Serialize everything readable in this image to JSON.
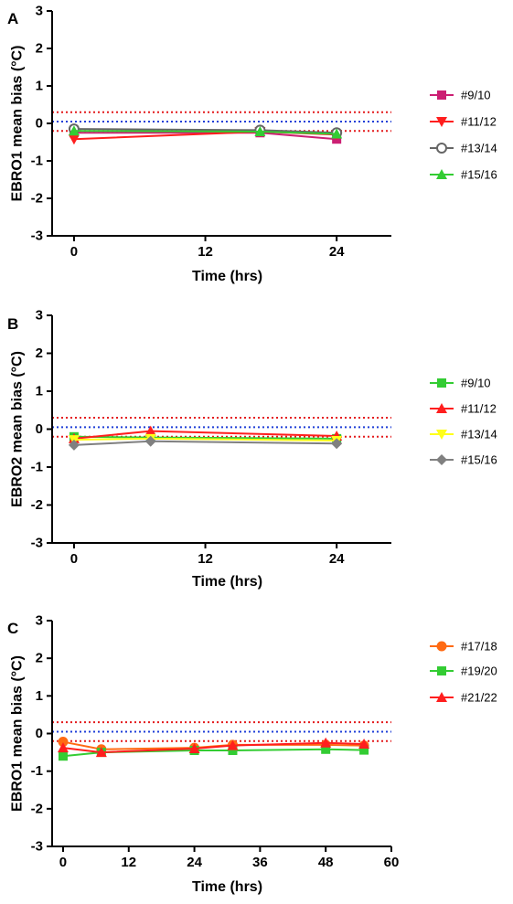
{
  "chart_data": [
    {
      "type": "line",
      "panel": "A",
      "xlabel": "Time (hrs)",
      "ylabel": "EBRO1 mean bias (°C)",
      "xlim": [
        -2,
        29
      ],
      "ylim": [
        -3,
        3
      ],
      "xticks": [
        0,
        12,
        24
      ],
      "yticks": [
        -3,
        -2,
        -1,
        0,
        1,
        2,
        3
      ],
      "reference_lines": [
        {
          "y": 0.3,
          "color": "#e41a1c",
          "style": "dotted"
        },
        {
          "y": 0.05,
          "color": "#1f3fd8",
          "style": "dotted"
        },
        {
          "y": -0.2,
          "color": "#e41a1c",
          "style": "dotted"
        }
      ],
      "legend_position": "right",
      "series": [
        {
          "name": "#9/10",
          "color": "#cc1f73",
          "marker": "square",
          "x": [
            0,
            17,
            24
          ],
          "y": [
            -0.25,
            -0.25,
            -0.42
          ]
        },
        {
          "name": "#11/12",
          "color": "#ff1e1e",
          "marker": "triangle-down",
          "x": [
            0,
            17,
            24
          ],
          "y": [
            -0.42,
            -0.22,
            -0.3
          ]
        },
        {
          "name": "#13/14",
          "color": "#666666",
          "marker": "circle-open",
          "x": [
            0,
            17,
            24
          ],
          "y": [
            -0.15,
            -0.18,
            -0.25
          ]
        },
        {
          "name": "#15/16",
          "color": "#33cc33",
          "marker": "triangle-up",
          "x": [
            0,
            17,
            24
          ],
          "y": [
            -0.2,
            -0.22,
            -0.28
          ]
        }
      ]
    },
    {
      "type": "line",
      "panel": "B",
      "xlabel": "Time (hrs)",
      "ylabel": "EBRO2 mean bias (°C)",
      "xlim": [
        -2,
        29
      ],
      "ylim": [
        -3,
        3
      ],
      "xticks": [
        0,
        12,
        24
      ],
      "yticks": [
        -3,
        -2,
        -1,
        0,
        1,
        2,
        3
      ],
      "reference_lines": [
        {
          "y": 0.3,
          "color": "#e41a1c",
          "style": "dotted"
        },
        {
          "y": 0.05,
          "color": "#1f3fd8",
          "style": "dotted"
        },
        {
          "y": -0.2,
          "color": "#e41a1c",
          "style": "dotted"
        }
      ],
      "legend_position": "right",
      "series": [
        {
          "name": "#9/10",
          "color": "#33cc33",
          "marker": "square",
          "x": [
            0,
            7,
            24
          ],
          "y": [
            -0.2,
            -0.22,
            -0.25
          ]
        },
        {
          "name": "#11/12",
          "color": "#ff1e1e",
          "marker": "triangle-up",
          "x": [
            0,
            7,
            24
          ],
          "y": [
            -0.25,
            -0.05,
            -0.18
          ]
        },
        {
          "name": "#13/14",
          "color": "#ffff1a",
          "marker": "triangle-down",
          "x": [
            0,
            7,
            24
          ],
          "y": [
            -0.28,
            -0.25,
            -0.3
          ]
        },
        {
          "name": "#15/16",
          "color": "#808080",
          "marker": "diamond",
          "x": [
            0,
            7,
            24
          ],
          "y": [
            -0.42,
            -0.32,
            -0.38
          ]
        }
      ]
    },
    {
      "type": "line",
      "panel": "C",
      "xlabel": "Time (hrs)",
      "ylabel": "EBRO1 mean bias (°C)",
      "xlim": [
        -2,
        60
      ],
      "ylim": [
        -3,
        3
      ],
      "xticks": [
        0,
        12,
        24,
        36,
        48,
        60
      ],
      "yticks": [
        -3,
        -2,
        -1,
        0,
        1,
        2,
        3
      ],
      "reference_lines": [
        {
          "y": 0.3,
          "color": "#e41a1c",
          "style": "dotted"
        },
        {
          "y": 0.05,
          "color": "#1f3fd8",
          "style": "dotted"
        },
        {
          "y": -0.2,
          "color": "#e41a1c",
          "style": "dotted"
        }
      ],
      "legend_position": "right",
      "series": [
        {
          "name": "#17/18",
          "color": "#ff6a13",
          "marker": "circle",
          "x": [
            0,
            7,
            24,
            31,
            48,
            55
          ],
          "y": [
            -0.22,
            -0.42,
            -0.38,
            -0.3,
            -0.3,
            -0.32
          ]
        },
        {
          "name": "#19/20",
          "color": "#33cc33",
          "marker": "square",
          "x": [
            0,
            7,
            24,
            31,
            48,
            55
          ],
          "y": [
            -0.6,
            -0.5,
            -0.45,
            -0.45,
            -0.42,
            -0.44
          ]
        },
        {
          "name": "#21/22",
          "color": "#ff1e1e",
          "marker": "triangle-up",
          "x": [
            0,
            7,
            24,
            31,
            48,
            55
          ],
          "y": [
            -0.38,
            -0.5,
            -0.4,
            -0.32,
            -0.25,
            -0.28
          ]
        }
      ]
    }
  ]
}
